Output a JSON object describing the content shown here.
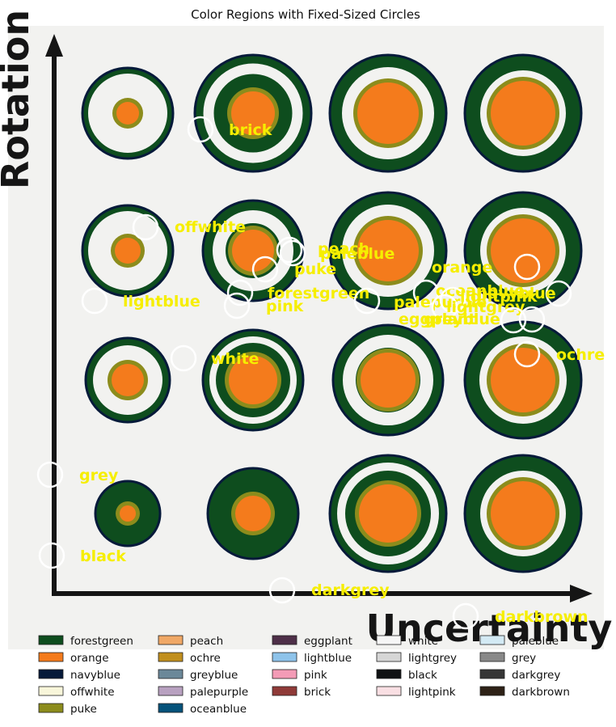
{
  "chart_data": {
    "type": "image-annotation",
    "title": "Color Regions with Fixed-Sized Circles",
    "ylabel": "Rotation",
    "xlabel": "Uncertainty",
    "grid": false,
    "legend_position": "bottom",
    "legend": [
      {
        "label": "forestgreen",
        "color": "#0e4d1e"
      },
      {
        "label": "orange",
        "color": "#f47b1c"
      },
      {
        "label": "navyblue",
        "color": "#061a3a"
      },
      {
        "label": "offwhite",
        "color": "#f8f6da"
      },
      {
        "label": "puke",
        "color": "#8c8c1c"
      },
      {
        "label": "peach",
        "color": "#f0a866"
      },
      {
        "label": "ochre",
        "color": "#c18f1e"
      },
      {
        "label": "greyblue",
        "color": "#6b8899"
      },
      {
        "label": "palepurple",
        "color": "#b8a1c0"
      },
      {
        "label": "oceanblue",
        "color": "#05527a"
      },
      {
        "label": "eggplant",
        "color": "#4e2f48"
      },
      {
        "label": "lightblue",
        "color": "#8ec3ea"
      },
      {
        "label": "pink",
        "color": "#f39bb6"
      },
      {
        "label": "brick",
        "color": "#8f3a38"
      },
      {
        "label": "white",
        "color": "#f6f6f6"
      },
      {
        "label": "lightgrey",
        "color": "#d6d6d6"
      },
      {
        "label": "black",
        "color": "#101214"
      },
      {
        "label": "lightpink",
        "color": "#f9dfe3"
      },
      {
        "label": "paleblue",
        "color": "#d3eaf4"
      },
      {
        "label": "grey",
        "color": "#898989"
      },
      {
        "label": "darkgrey",
        "color": "#363636"
      },
      {
        "label": "darkbrown",
        "color": "#2e2217"
      }
    ],
    "annotations": [
      {
        "label": "brick"
      },
      {
        "label": "offwhite"
      },
      {
        "label": "peach"
      },
      {
        "label": "paleblue"
      },
      {
        "label": "puke"
      },
      {
        "label": "orange"
      },
      {
        "label": "forestgreen"
      },
      {
        "label": "pink"
      },
      {
        "label": "lightblue"
      },
      {
        "label": "oceanblue"
      },
      {
        "label": "palepurple"
      },
      {
        "label": "navyblue"
      },
      {
        "label": "lightpink"
      },
      {
        "label": "lightgrey"
      },
      {
        "label": "eggplant"
      },
      {
        "label": "greyblue"
      },
      {
        "label": "ochre"
      },
      {
        "label": "white"
      },
      {
        "label": "grey"
      },
      {
        "label": "black"
      },
      {
        "label": "darkgrey"
      },
      {
        "label": "darkbrown"
      }
    ]
  }
}
